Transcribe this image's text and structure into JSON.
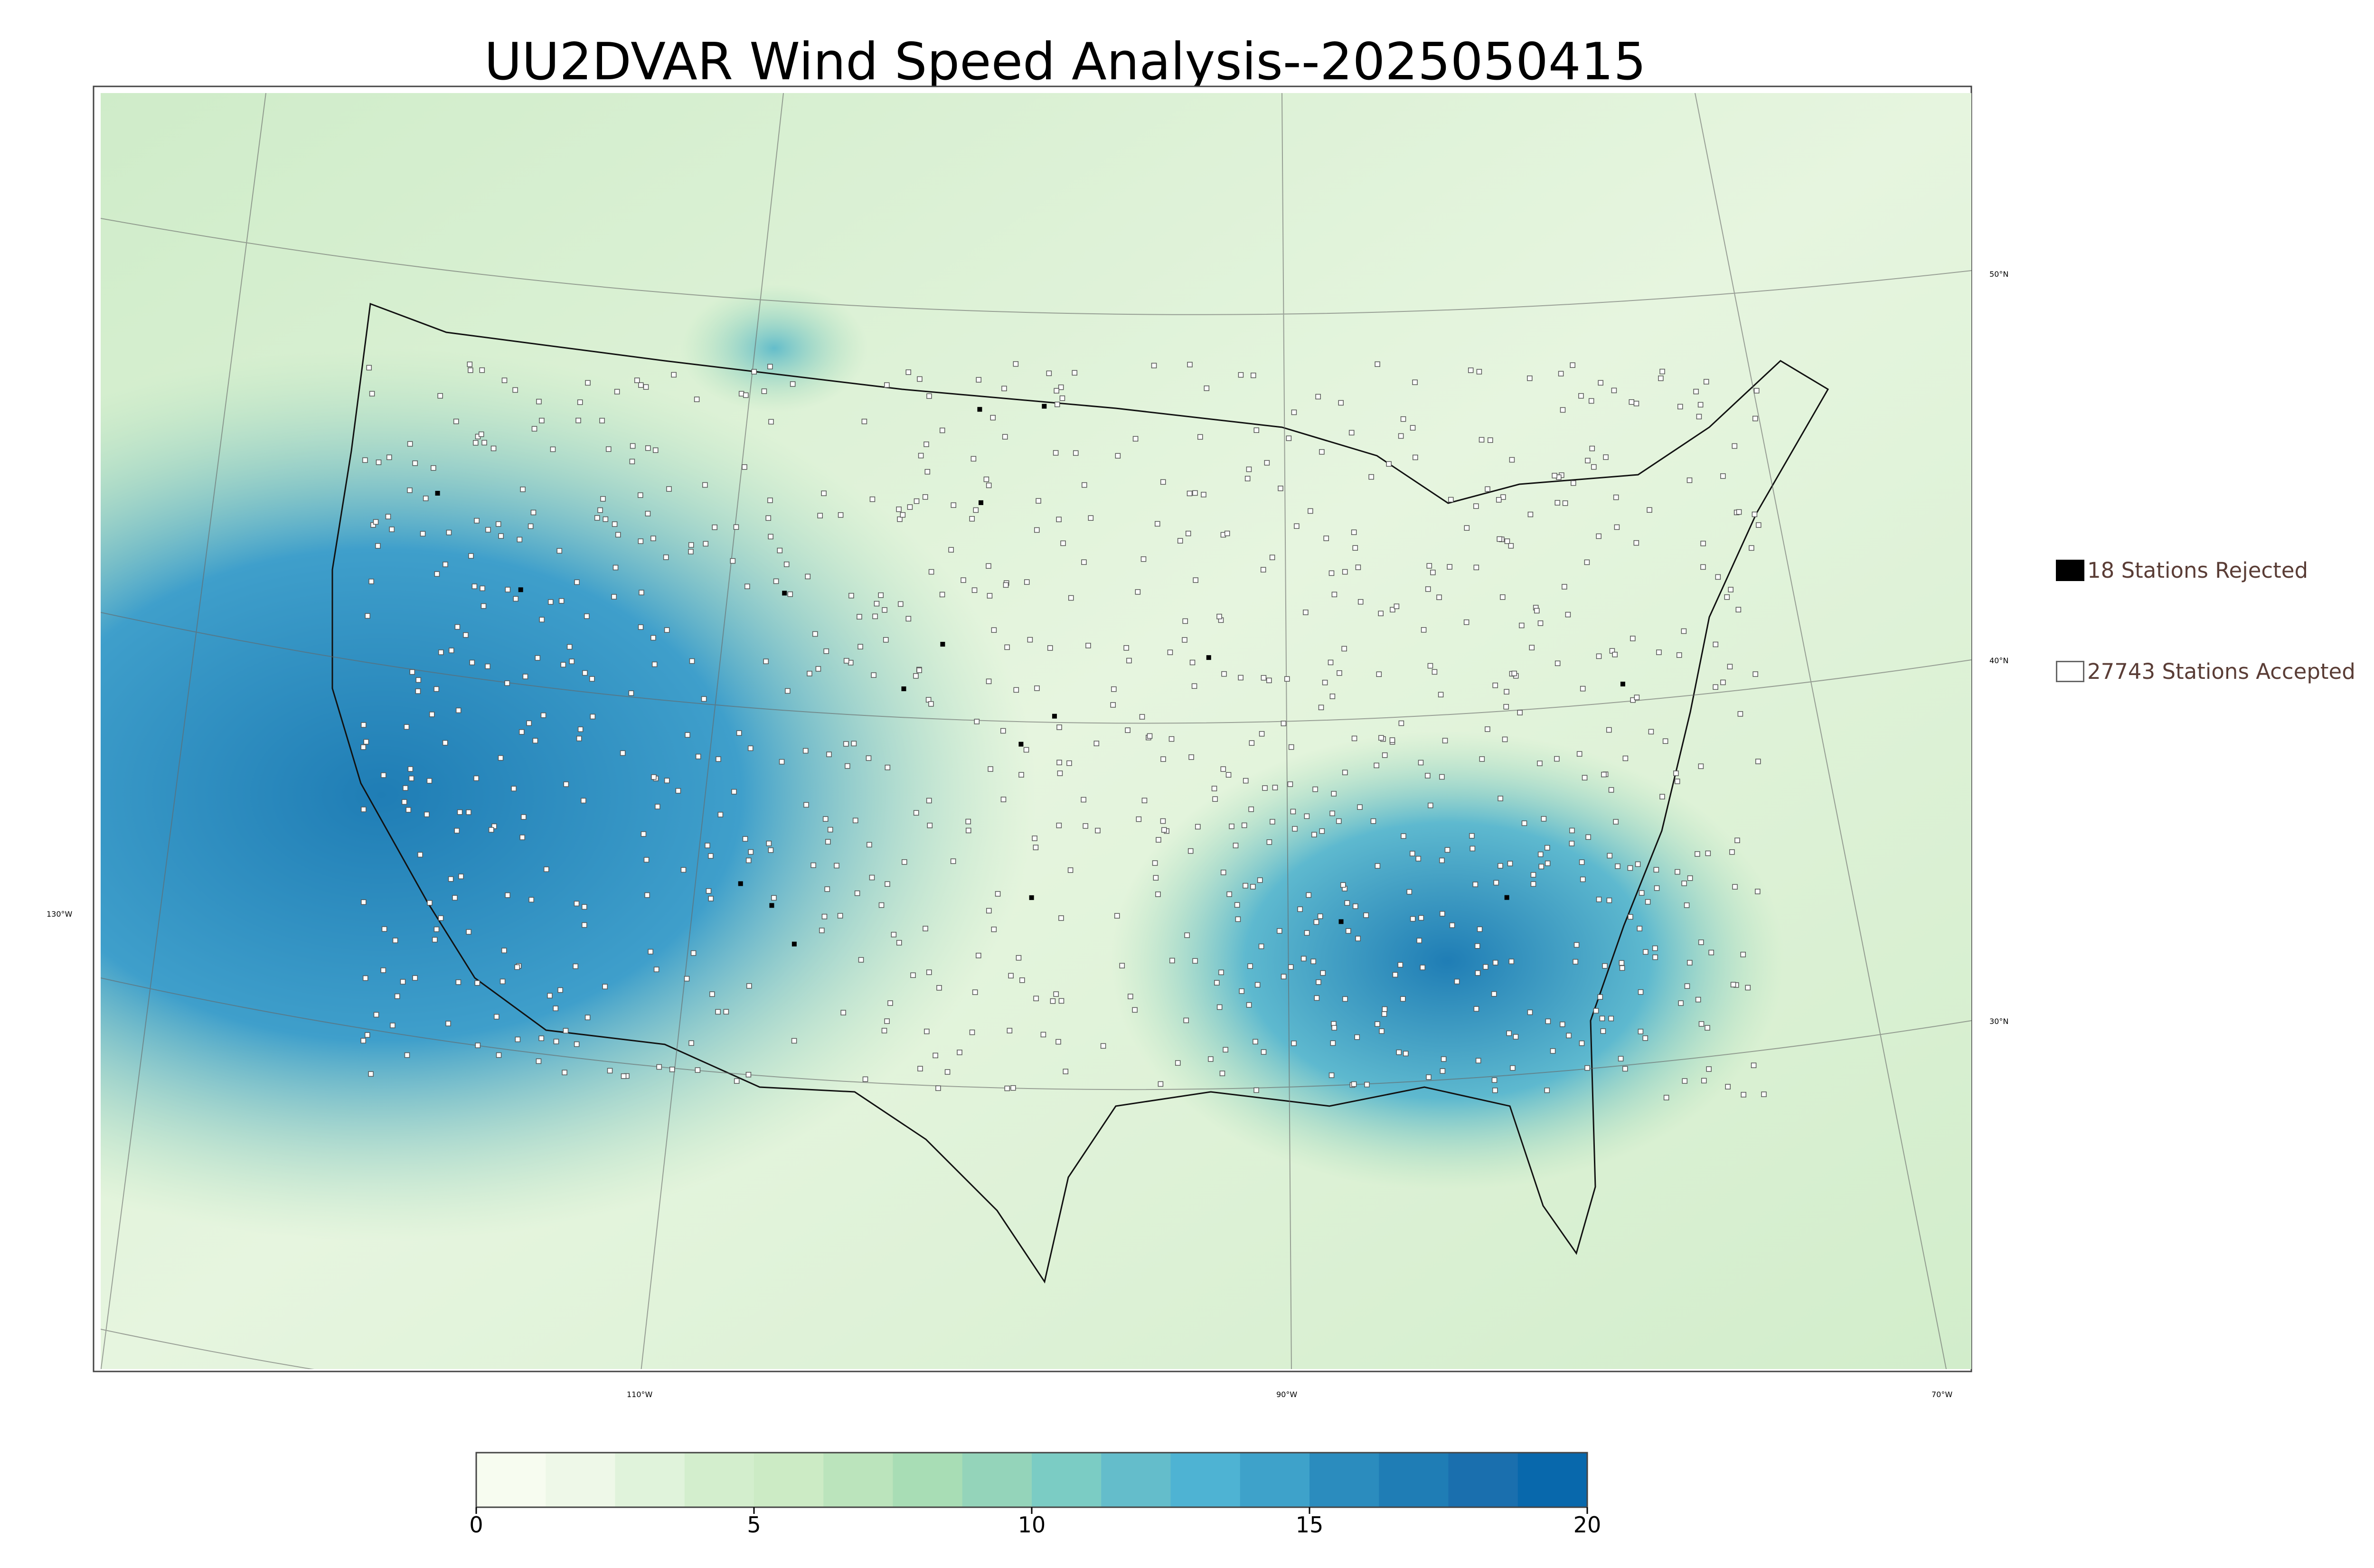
{
  "title": "UU2DVAR Wind Speed Analysis--2025050415",
  "legend": {
    "rejected_label": "18 Stations Rejected",
    "accepted_label": "27743 Stations Accepted",
    "rejected_color": "#000000",
    "accepted_color": "#ffffff"
  },
  "colorbar": {
    "min": 0,
    "max": 20,
    "ticks": [
      "0",
      "5",
      "10",
      "15",
      "20"
    ],
    "colors": [
      "#f7fcf0",
      "#eef8e8",
      "#e0f3db",
      "#d3eecd",
      "#ccebc5",
      "#bbe4bc",
      "#a8ddb5",
      "#94d4ba",
      "#7bccc4",
      "#64bdcb",
      "#4eb3d3",
      "#3ea2ca",
      "#2b8cbe",
      "#1f7db5",
      "#1a6fae",
      "#0868ac"
    ]
  },
  "gridlines": {
    "lon_labels": [
      "130°W",
      "110°W",
      "90°W",
      "70°W"
    ],
    "lat_labels": [
      "50°N",
      "40°N",
      "30°N"
    ]
  },
  "colors": {
    "background": "#ffffff",
    "land_green": "#d4eecc",
    "ocean_blue": "#2b88c1"
  }
}
